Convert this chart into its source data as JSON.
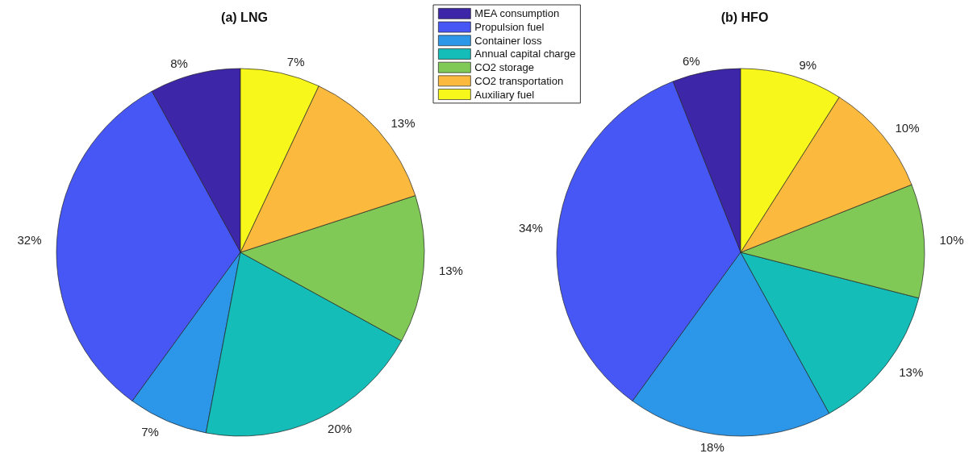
{
  "chart_data": [
    {
      "type": "pie",
      "title": "(a) LNG",
      "categories": [
        "MEA consumption",
        "Propulsion fuel",
        "Container loss",
        "Annual capital charge",
        "CO2 storage",
        "CO2 transportation",
        "Auxiliary fuel"
      ],
      "values": [
        8,
        32,
        7,
        20,
        13,
        13,
        7
      ],
      "value_labels": [
        "8%",
        "32%",
        "7%",
        "20%",
        "13%",
        "13%",
        "7%"
      ],
      "colors": [
        "#3e26a8",
        "#4757f5",
        "#2c97e8",
        "#14bdb7",
        "#80c956",
        "#fbba3d",
        "#f7f71b"
      ],
      "legend": "top right"
    },
    {
      "type": "pie",
      "title": "(b) HFO",
      "categories": [
        null,
        null,
        null,
        null,
        null,
        null,
        null
      ],
      "values": [
        6,
        34,
        18,
        13,
        10,
        10,
        9
      ],
      "value_labels": [
        "6%",
        "34%",
        "18%",
        "13%",
        "10%",
        "10%",
        "9%"
      ],
      "colors": [
        "#3e26a8",
        "#4757f5",
        "#2c97e8",
        "#14bdb7",
        "#80c956",
        "#fbba3d",
        "#f7f71b"
      ]
    }
  ]
}
